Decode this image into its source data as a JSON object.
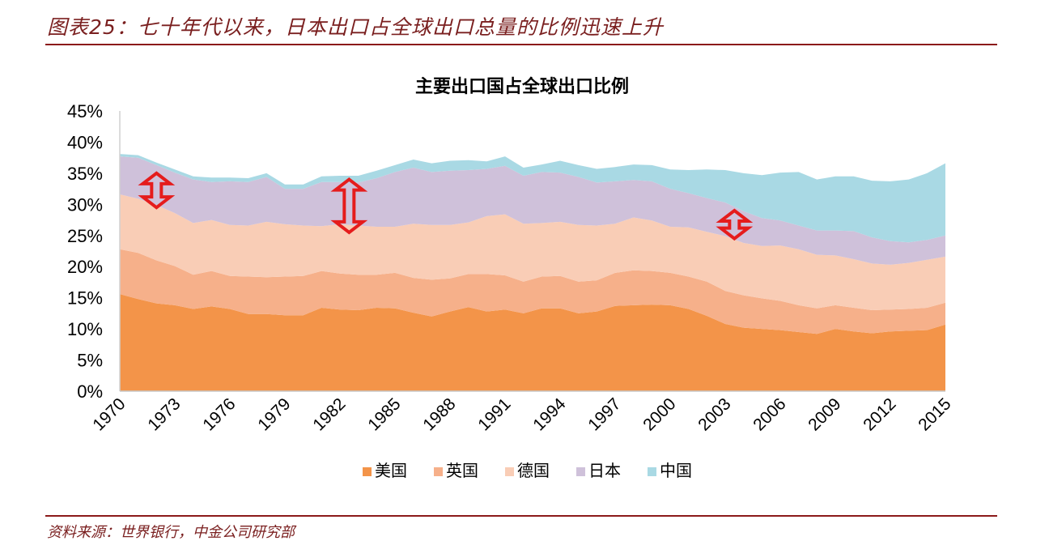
{
  "figure": {
    "label": "图表25：七十年代以来，日本出口占全球出口总量的比例迅速上升",
    "source": "资料来源：世界银行，中金公司研究部"
  },
  "chart_data": {
    "type": "area",
    "stacked": true,
    "title": "主要出口国占全球出口比例",
    "xlabel": "",
    "ylabel": "",
    "ylim": [
      0,
      45
    ],
    "yticks": [
      "0%",
      "5%",
      "10%",
      "15%",
      "20%",
      "25%",
      "30%",
      "35%",
      "40%",
      "45%"
    ],
    "x": [
      1970,
      1971,
      1972,
      1973,
      1974,
      1975,
      1976,
      1977,
      1978,
      1979,
      1980,
      1981,
      1982,
      1983,
      1984,
      1985,
      1986,
      1987,
      1988,
      1989,
      1990,
      1991,
      1992,
      1993,
      1994,
      1995,
      1996,
      1997,
      1998,
      1999,
      2000,
      2001,
      2002,
      2003,
      2004,
      2005,
      2006,
      2007,
      2008,
      2009,
      2010,
      2011,
      2012,
      2013,
      2014,
      2015
    ],
    "xtick_labels": [
      "1970",
      "1973",
      "1976",
      "1979",
      "1982",
      "1985",
      "1988",
      "1991",
      "1994",
      "1997",
      "2000",
      "2003",
      "2006",
      "2009",
      "2012",
      "2015"
    ],
    "grid": false,
    "legend_position": "bottom",
    "series": [
      {
        "name": "美国",
        "color": "#f39449",
        "values": [
          15.6,
          14.8,
          14.1,
          13.8,
          13.2,
          13.6,
          13.2,
          12.4,
          12.4,
          12.2,
          12.2,
          13.4,
          13.1,
          13.0,
          13.4,
          13.3,
          12.6,
          12.0,
          12.8,
          13.5,
          12.8,
          13.1,
          12.5,
          13.3,
          13.3,
          12.5,
          12.8,
          13.7,
          13.8,
          13.9,
          13.8,
          13.2,
          12.1,
          10.8,
          10.2,
          10.0,
          9.8,
          9.5,
          9.2,
          10.0,
          9.6,
          9.3,
          9.6,
          9.7,
          9.8,
          10.7
        ]
      },
      {
        "name": "英国",
        "color": "#f6b08a",
        "values": [
          7.2,
          7.4,
          6.9,
          6.3,
          5.5,
          5.7,
          5.3,
          6.0,
          5.9,
          6.2,
          6.3,
          5.9,
          5.8,
          5.7,
          5.3,
          5.7,
          5.6,
          5.9,
          5.3,
          5.3,
          6.0,
          5.5,
          5.1,
          5.1,
          5.2,
          5.1,
          5.0,
          5.3,
          5.6,
          5.4,
          5.2,
          5.2,
          5.5,
          5.3,
          5.2,
          4.9,
          4.7,
          4.3,
          4.1,
          3.8,
          3.8,
          3.7,
          3.5,
          3.5,
          3.6,
          3.5
        ]
      },
      {
        "name": "德国",
        "color": "#f9cdb6",
        "values": [
          8.8,
          8.7,
          8.9,
          8.5,
          8.3,
          8.2,
          8.2,
          8.2,
          8.9,
          8.4,
          8.1,
          7.2,
          7.9,
          7.9,
          7.7,
          7.4,
          8.7,
          8.8,
          8.6,
          8.3,
          9.3,
          9.8,
          9.3,
          8.6,
          8.7,
          9.1,
          8.8,
          7.9,
          8.5,
          8.1,
          7.4,
          7.9,
          8.0,
          8.8,
          8.4,
          8.4,
          8.9,
          9.0,
          8.6,
          8.0,
          7.8,
          7.5,
          7.2,
          7.4,
          7.7,
          7.4
        ]
      },
      {
        "name": "日本",
        "color": "#cfc1da",
        "values": [
          6.1,
          6.6,
          6.4,
          6.5,
          7.0,
          6.1,
          7.0,
          7.0,
          7.2,
          5.7,
          5.9,
          7.1,
          6.8,
          6.9,
          7.8,
          8.8,
          9.0,
          8.5,
          8.7,
          8.4,
          7.6,
          7.8,
          7.7,
          8.2,
          7.9,
          7.7,
          6.9,
          6.8,
          6.0,
          6.3,
          6.1,
          5.5,
          5.4,
          5.4,
          5.1,
          4.5,
          4.0,
          3.8,
          3.9,
          4.0,
          4.5,
          4.2,
          3.8,
          3.3,
          3.2,
          3.4
        ]
      },
      {
        "name": "中国",
        "color": "#a9d9e4",
        "values": [
          0.4,
          0.4,
          0.4,
          0.5,
          0.5,
          0.7,
          0.6,
          0.6,
          0.6,
          0.7,
          0.7,
          0.9,
          1.0,
          1.1,
          1.2,
          1.1,
          1.3,
          1.4,
          1.6,
          1.6,
          1.2,
          1.5,
          1.3,
          1.2,
          1.9,
          1.9,
          2.2,
          2.3,
          2.5,
          2.6,
          3.1,
          3.7,
          4.6,
          5.2,
          6.1,
          6.9,
          7.7,
          8.6,
          8.2,
          8.7,
          8.8,
          9.1,
          9.6,
          10.1,
          10.7,
          11.6
        ]
      }
    ],
    "annotations": [
      {
        "type": "double-arrow",
        "color": "#e51c1c",
        "x": 1972,
        "y_from": 29.5,
        "y_to": 35.0
      },
      {
        "type": "double-arrow",
        "color": "#e51c1c",
        "x": 1982.5,
        "y_from": 25.5,
        "y_to": 34.0
      },
      {
        "type": "double-arrow",
        "color": "#e51c1c",
        "x": 2003.5,
        "y_from": 24.5,
        "y_to": 29.0
      }
    ]
  }
}
